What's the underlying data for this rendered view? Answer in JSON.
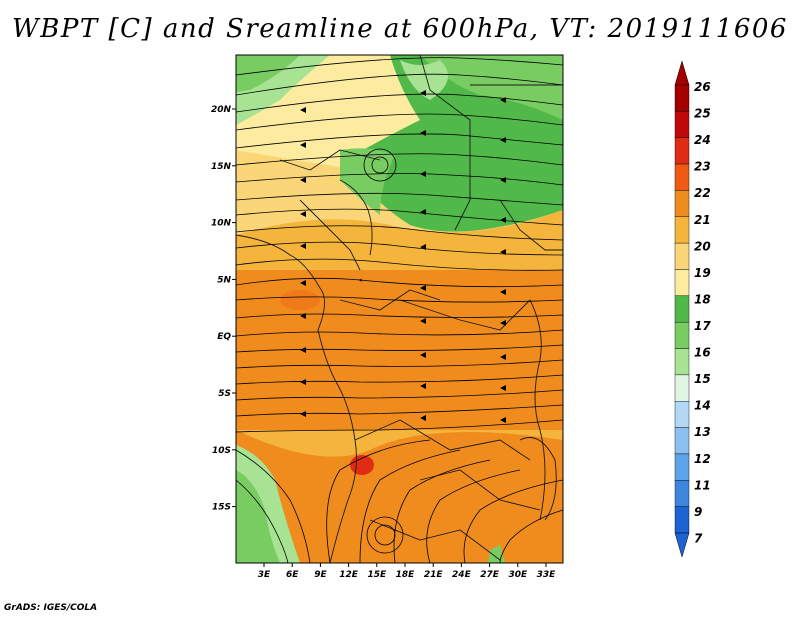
{
  "map": {
    "title": "WBPT [C] and Sreamline at 600hPa, VT: 2019111606",
    "footer": "GrADS: IGES/COLA",
    "lat_ticks": [
      "20N",
      "15N",
      "10N",
      "5N",
      "EQ",
      "5S",
      "10S",
      "15S"
    ],
    "lon_ticks": [
      "3E",
      "6E",
      "9E",
      "12E",
      "15E",
      "18E",
      "21E",
      "24E",
      "27E",
      "30E",
      "33E"
    ],
    "colorbar": {
      "levels": [
        "26",
        "25",
        "24",
        "23",
        "22",
        "21",
        "20",
        "19",
        "18",
        "17",
        "16",
        "15",
        "14",
        "13",
        "12",
        "11",
        "9",
        "7"
      ],
      "colors": [
        "#a50000",
        "#c00a0a",
        "#e02c14",
        "#f05a14",
        "#f08c1e",
        "#f5b43c",
        "#fbd678",
        "#fdeca0",
        "#51b84a",
        "#79cc62",
        "#a8e393",
        "#dff6e2",
        "#b3d8f6",
        "#8cc0f0",
        "#5ea4ea",
        "#3c86e0",
        "#1c64d4"
      ]
    },
    "legend_colors": {
      "land_green": "#51b84a",
      "light_green": "#a8e393",
      "pale_yellow": "#fdeca0",
      "orange": "#f08c1e",
      "light_orange": "#f5b43c",
      "red": "#e02c14"
    }
  }
}
